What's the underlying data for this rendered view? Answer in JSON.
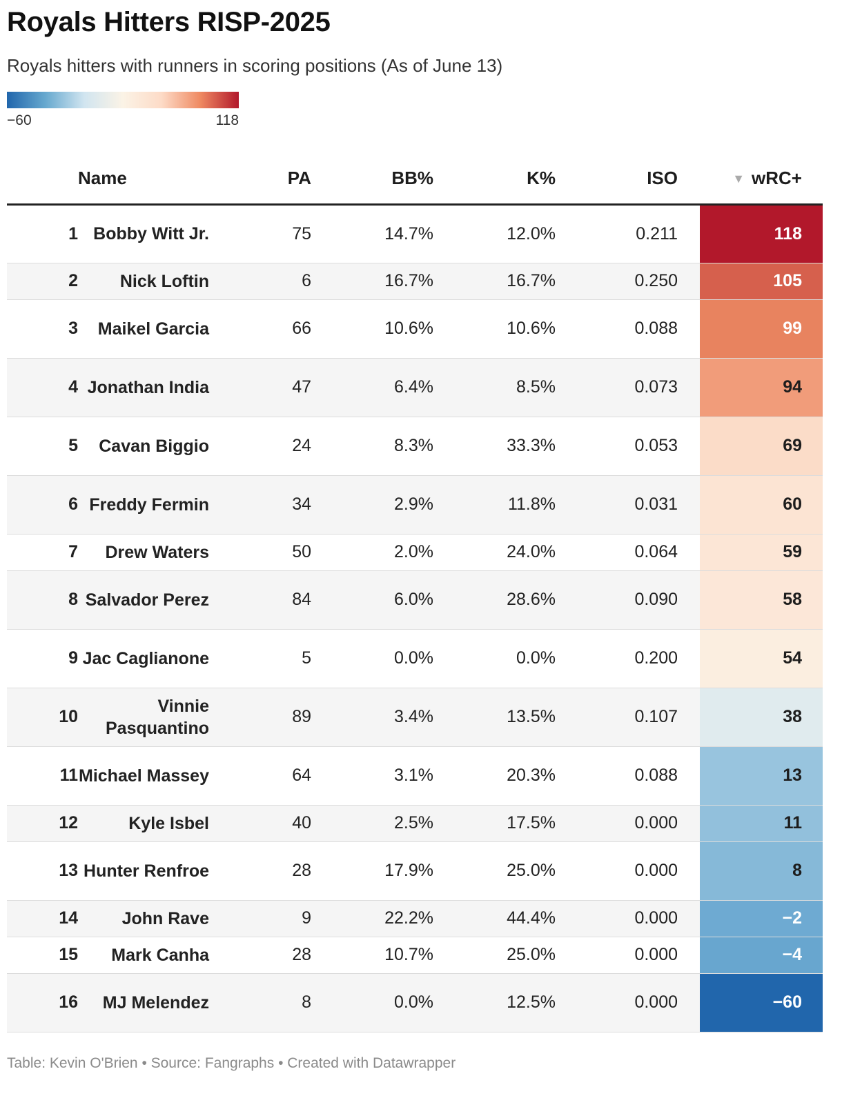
{
  "title": "Royals Hitters RISP-2025",
  "subtitle": "Royals hitters with runners in scoring positions (As of June 13)",
  "legend": {
    "min_label": "−60",
    "max_label": "118",
    "min": -60,
    "max": 118,
    "colors": [
      "#2166ac",
      "#67a9cf",
      "#d1e5f0",
      "#fbf3e6",
      "#fddbc7",
      "#ef8a62",
      "#b2182b"
    ]
  },
  "columns": {
    "name": "Name",
    "pa": "PA",
    "bb": "BB%",
    "k": "K%",
    "iso": "ISO",
    "wrc": "wRC+",
    "sort_icon": "▼"
  },
  "footer": "Table: Kevin O'Brien • Source: Fangraphs • Created with Datawrapper",
  "chart_data": {
    "type": "table",
    "columns": [
      "",
      "Name",
      "PA",
      "BB%",
      "K%",
      "ISO",
      "wRC+"
    ],
    "sorted_by": "wRC+",
    "rows": [
      {
        "rank": "1",
        "name": "Bobby Witt Jr.",
        "pa": "75",
        "bb": "14.7%",
        "k": "12.0%",
        "iso": "0.211",
        "wrc": "118",
        "wrc_value": 118,
        "wrc_color": "#b2182b",
        "wrc_text_color": "#ffffff",
        "lines": 2
      },
      {
        "rank": "2",
        "name": "Nick Loftin",
        "pa": "6",
        "bb": "16.7%",
        "k": "16.7%",
        "iso": "0.250",
        "wrc": "105",
        "wrc_value": 105,
        "wrc_color": "#d6604d",
        "wrc_text_color": "#ffffff",
        "lines": 1
      },
      {
        "rank": "3",
        "name": "Maikel Garcia",
        "pa": "66",
        "bb": "10.6%",
        "k": "10.6%",
        "iso": "0.088",
        "wrc": "99",
        "wrc_value": 99,
        "wrc_color": "#e8835f",
        "wrc_text_color": "#ffffff",
        "lines": 2
      },
      {
        "rank": "4",
        "name": "Jonathan India",
        "pa": "47",
        "bb": "6.4%",
        "k": "8.5%",
        "iso": "0.073",
        "wrc": "94",
        "wrc_value": 94,
        "wrc_color": "#f19c7a",
        "wrc_text_color": "#1d1d1d",
        "lines": 2
      },
      {
        "rank": "5",
        "name": "Cavan Biggio",
        "pa": "24",
        "bb": "8.3%",
        "k": "33.3%",
        "iso": "0.053",
        "wrc": "69",
        "wrc_value": 69,
        "wrc_color": "#fbdcc8",
        "wrc_text_color": "#1d1d1d",
        "lines": 2
      },
      {
        "rank": "6",
        "name": "Freddy Fermin",
        "pa": "34",
        "bb": "2.9%",
        "k": "11.8%",
        "iso": "0.031",
        "wrc": "60",
        "wrc_value": 60,
        "wrc_color": "#fce4d3",
        "wrc_text_color": "#1d1d1d",
        "lines": 2
      },
      {
        "rank": "7",
        "name": "Drew Waters",
        "pa": "50",
        "bb": "2.0%",
        "k": "24.0%",
        "iso": "0.064",
        "wrc": "59",
        "wrc_value": 59,
        "wrc_color": "#fce6d6",
        "wrc_text_color": "#1d1d1d",
        "lines": 1
      },
      {
        "rank": "8",
        "name": "Salvador Perez",
        "pa": "84",
        "bb": "6.0%",
        "k": "28.6%",
        "iso": "0.090",
        "wrc": "58",
        "wrc_value": 58,
        "wrc_color": "#fce7d8",
        "wrc_text_color": "#1d1d1d",
        "lines": 2
      },
      {
        "rank": "9",
        "name": "Jac Caglianone",
        "pa": "5",
        "bb": "0.0%",
        "k": "0.0%",
        "iso": "0.200",
        "wrc": "54",
        "wrc_value": 54,
        "wrc_color": "#fbeee0",
        "wrc_text_color": "#1d1d1d",
        "lines": 2
      },
      {
        "rank": "10",
        "name": "Vinnie Pasquantino",
        "pa": "89",
        "bb": "3.4%",
        "k": "13.5%",
        "iso": "0.107",
        "wrc": "38",
        "wrc_value": 38,
        "wrc_color": "#e0ebee",
        "wrc_text_color": "#1d1d1d",
        "lines": 2
      },
      {
        "rank": "11",
        "name": "Michael Massey",
        "pa": "64",
        "bb": "3.1%",
        "k": "20.3%",
        "iso": "0.088",
        "wrc": "13",
        "wrc_value": 13,
        "wrc_color": "#98c4de",
        "wrc_text_color": "#1d1d1d",
        "lines": 2
      },
      {
        "rank": "12",
        "name": "Kyle Isbel",
        "pa": "40",
        "bb": "2.5%",
        "k": "17.5%",
        "iso": "0.000",
        "wrc": "11",
        "wrc_value": 11,
        "wrc_color": "#92c0dc",
        "wrc_text_color": "#1d1d1d",
        "lines": 1
      },
      {
        "rank": "13",
        "name": "Hunter Renfroe",
        "pa": "28",
        "bb": "17.9%",
        "k": "25.0%",
        "iso": "0.000",
        "wrc": "8",
        "wrc_value": 8,
        "wrc_color": "#86b9d8",
        "wrc_text_color": "#1d1d1d",
        "lines": 2
      },
      {
        "rank": "14",
        "name": "John Rave",
        "pa": "9",
        "bb": "22.2%",
        "k": "44.4%",
        "iso": "0.000",
        "wrc": "−2",
        "wrc_value": -2,
        "wrc_color": "#6eaad2",
        "wrc_text_color": "#ffffff",
        "lines": 1
      },
      {
        "rank": "15",
        "name": "Mark Canha",
        "pa": "28",
        "bb": "10.7%",
        "k": "25.0%",
        "iso": "0.000",
        "wrc": "−4",
        "wrc_value": -4,
        "wrc_color": "#68a6cf",
        "wrc_text_color": "#ffffff",
        "lines": 1
      },
      {
        "rank": "16",
        "name": "MJ Melendez",
        "pa": "8",
        "bb": "0.0%",
        "k": "12.5%",
        "iso": "0.000",
        "wrc": "−60",
        "wrc_value": -60,
        "wrc_color": "#2166ac",
        "wrc_text_color": "#ffffff",
        "lines": 2
      }
    ]
  }
}
